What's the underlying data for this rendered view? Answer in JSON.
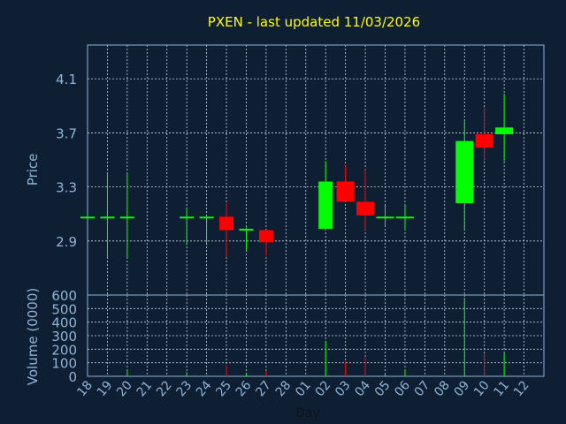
{
  "colors": {
    "background": "#0f1f33",
    "title": "#ffff00",
    "axis_text": "#8fb4d6",
    "frame": "#8fb4d6",
    "grid": "#c8d6e4",
    "up": "#00ff00",
    "down": "#ff0000"
  },
  "chart_data": {
    "type": "candlestick",
    "title": "PXEN - last updated 11/03/2026",
    "price_panel": {
      "ylabel": "Price",
      "ylim": [
        2.5,
        4.35
      ],
      "yticks": [
        "2.9",
        "3.3",
        "3.7",
        "4.1"
      ],
      "grid": true
    },
    "volume_panel": {
      "ylabel": "Volume (0000)",
      "ylim": [
        0,
        600
      ],
      "yticks": [
        "0",
        "100",
        "200",
        "300",
        "400",
        "500",
        "600"
      ],
      "grid": true
    },
    "xlabel": "Day",
    "x_ticks": [
      "18",
      "19",
      "20",
      "21",
      "22",
      "23",
      "24",
      "25",
      "26",
      "27",
      "28",
      "01",
      "02",
      "03",
      "04",
      "05",
      "06",
      "07",
      "08",
      "09",
      "10",
      "11",
      "12"
    ],
    "candles": [
      {
        "day": "18",
        "open": 3.08,
        "high": 3.08,
        "low": 3.08,
        "close": 3.08,
        "volume": 0
      },
      {
        "day": "19",
        "open": 3.08,
        "high": 3.4,
        "low": 2.78,
        "close": 3.08,
        "volume": 0
      },
      {
        "day": "20",
        "open": 3.08,
        "high": 3.4,
        "low": 2.77,
        "close": 3.08,
        "volume": 50
      },
      {
        "day": "23",
        "open": 3.08,
        "high": 3.15,
        "low": 2.87,
        "close": 3.08,
        "volume": 30
      },
      {
        "day": "24",
        "open": 3.08,
        "high": 3.08,
        "low": 2.87,
        "close": 3.08,
        "volume": 5
      },
      {
        "day": "25",
        "open": 3.08,
        "high": 3.18,
        "low": 2.78,
        "close": 2.98,
        "volume": 80
      },
      {
        "day": "26",
        "open": 2.99,
        "high": 3.0,
        "low": 2.83,
        "close": 2.99,
        "volume": 20
      },
      {
        "day": "27",
        "open": 2.98,
        "high": 2.98,
        "low": 2.79,
        "close": 2.89,
        "volume": 40
      },
      {
        "day": "02",
        "open": 2.99,
        "high": 3.49,
        "low": 2.99,
        "close": 3.34,
        "volume": 260
      },
      {
        "day": "03",
        "open": 3.34,
        "high": 3.46,
        "low": 3.19,
        "close": 3.19,
        "volume": 110
      },
      {
        "day": "04",
        "open": 3.19,
        "high": 3.43,
        "low": 2.98,
        "close": 3.09,
        "volume": 140
      },
      {
        "day": "05",
        "open": 3.08,
        "high": 3.16,
        "low": 3.01,
        "close": 3.08,
        "volume": 20
      },
      {
        "day": "06",
        "open": 3.08,
        "high": 3.17,
        "low": 2.98,
        "close": 3.08,
        "volume": 50
      },
      {
        "day": "09",
        "open": 3.18,
        "high": 3.79,
        "low": 2.98,
        "close": 3.64,
        "volume": 580
      },
      {
        "day": "10",
        "open": 3.69,
        "high": 3.89,
        "low": 3.49,
        "close": 3.59,
        "volume": 170
      },
      {
        "day": "11",
        "open": 3.69,
        "high": 3.99,
        "low": 3.49,
        "close": 3.74,
        "volume": 170
      }
    ]
  }
}
